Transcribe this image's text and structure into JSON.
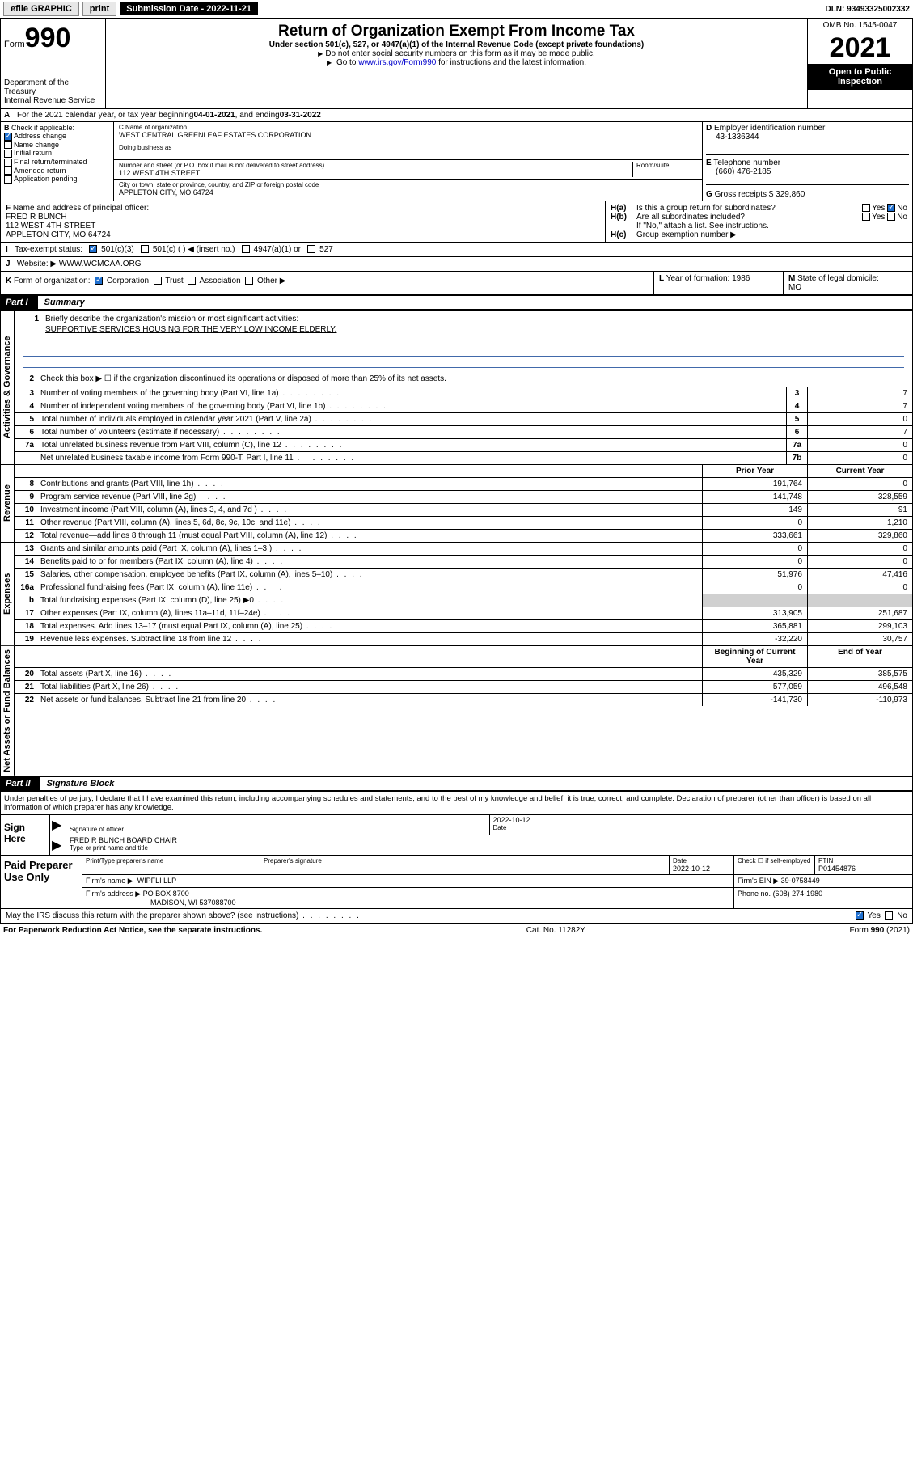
{
  "topbar": {
    "efile": "efile GRAPHIC",
    "print": "print",
    "submission_label": "Submission Date - 2022-11-21",
    "dln_label": "DLN: 93493325002332"
  },
  "header": {
    "form_word": "Form",
    "form_num": "990",
    "title": "Return of Organization Exempt From Income Tax",
    "subtitle": "Under section 501(c), 527, or 4947(a)(1) of the Internal Revenue Code (except private foundations)",
    "note1": "Do not enter social security numbers on this form as it may be made public.",
    "note2_pre": "Go to ",
    "note2_link": "www.irs.gov/Form990",
    "note2_post": " for instructions and the latest information.",
    "dept": "Department of the Treasury",
    "irs": "Internal Revenue Service",
    "omb": "OMB No. 1545-0047",
    "year": "2021",
    "open": "Open to Public Inspection"
  },
  "A": {
    "text": "For the 2021 calendar year, or tax year beginning ",
    "begin": "04-01-2021",
    "mid": " , and ending ",
    "end": "03-31-2022"
  },
  "B": {
    "label": "Check if applicable:",
    "items": [
      "Address change",
      "Name change",
      "Initial return",
      "Final return/terminated",
      "Amended return",
      "Application pending"
    ],
    "checked_idx": 0
  },
  "C": {
    "name_label": "Name of organization",
    "name": "WEST CENTRAL GREENLEAF ESTATES CORPORATION",
    "dba_label": "Doing business as",
    "street_label": "Number and street (or P.O. box if mail is not delivered to street address)",
    "room_label": "Room/suite",
    "street": "112 WEST 4TH STREET",
    "city_label": "City or town, state or province, country, and ZIP or foreign postal code",
    "city": "APPLETON CITY, MO  64724"
  },
  "D": {
    "label": "Employer identification number",
    "value": "43-1336344"
  },
  "E": {
    "label": "Telephone number",
    "value": "(660) 476-2185"
  },
  "G": {
    "label": "Gross receipts $",
    "value": "329,860"
  },
  "F": {
    "label": "Name and address of principal officer:",
    "name": "FRED R BUNCH",
    "street": "112 WEST 4TH STREET",
    "city": "APPLETON CITY, MO  64724"
  },
  "H": {
    "a": "Is this a group return for subordinates?",
    "b": "Are all subordinates included?",
    "b_note": "If \"No,\" attach a list. See instructions.",
    "c": "Group exemption number ▶",
    "yes": "Yes",
    "no": "No"
  },
  "I": {
    "label": "Tax-exempt status:",
    "opts": [
      "501(c)(3)",
      "501(c) (  ) ◀ (insert no.)",
      "4947(a)(1) or",
      "527"
    ]
  },
  "J": {
    "label": "Website: ▶",
    "value": "WWW.WCMCAA.ORG"
  },
  "K": {
    "label": "Form of organization:",
    "opts": [
      "Corporation",
      "Trust",
      "Association",
      "Other ▶"
    ]
  },
  "L": {
    "label": "Year of formation:",
    "value": "1986"
  },
  "M": {
    "label": "State of legal domicile:",
    "value": "MO"
  },
  "part1": {
    "label": "Part I",
    "title": "Summary",
    "q1": "Briefly describe the organization's mission or most significant activities:",
    "mission": "SUPPORTIVE SERVICES HOUSING FOR THE VERY LOW INCOME ELDERLY.",
    "q2": "Check this box ▶ ☐  if the organization discontinued its operations or disposed of more than 25% of its net assets.",
    "tabs": {
      "gov": "Activities & Governance",
      "rev": "Revenue",
      "exp": "Expenses",
      "net": "Net Assets or Fund Balances"
    },
    "rows_gov": [
      {
        "n": "3",
        "d": "Number of voting members of the governing body (Part VI, line 1a)",
        "box": "3",
        "v": "7"
      },
      {
        "n": "4",
        "d": "Number of independent voting members of the governing body (Part VI, line 1b)",
        "box": "4",
        "v": "7"
      },
      {
        "n": "5",
        "d": "Total number of individuals employed in calendar year 2021 (Part V, line 2a)",
        "box": "5",
        "v": "0"
      },
      {
        "n": "6",
        "d": "Total number of volunteers (estimate if necessary)",
        "box": "6",
        "v": "7"
      },
      {
        "n": "7a",
        "d": "Total unrelated business revenue from Part VIII, column (C), line 12",
        "box": "7a",
        "v": "0"
      },
      {
        "n": "",
        "d": "Net unrelated business taxable income from Form 990-T, Part I, line 11",
        "box": "7b",
        "v": "0"
      }
    ],
    "col_prior": "Prior Year",
    "col_current": "Current Year",
    "rows_rev": [
      {
        "n": "8",
        "d": "Contributions and grants (Part VIII, line 1h)",
        "p": "191,764",
        "c": "0"
      },
      {
        "n": "9",
        "d": "Program service revenue (Part VIII, line 2g)",
        "p": "141,748",
        "c": "328,559"
      },
      {
        "n": "10",
        "d": "Investment income (Part VIII, column (A), lines 3, 4, and 7d )",
        "p": "149",
        "c": "91"
      },
      {
        "n": "11",
        "d": "Other revenue (Part VIII, column (A), lines 5, 6d, 8c, 9c, 10c, and 11e)",
        "p": "0",
        "c": "1,210"
      },
      {
        "n": "12",
        "d": "Total revenue—add lines 8 through 11 (must equal Part VIII, column (A), line 12)",
        "p": "333,661",
        "c": "329,860"
      }
    ],
    "rows_exp": [
      {
        "n": "13",
        "d": "Grants and similar amounts paid (Part IX, column (A), lines 1–3 )",
        "p": "0",
        "c": "0"
      },
      {
        "n": "14",
        "d": "Benefits paid to or for members (Part IX, column (A), line 4)",
        "p": "0",
        "c": "0"
      },
      {
        "n": "15",
        "d": "Salaries, other compensation, employee benefits (Part IX, column (A), lines 5–10)",
        "p": "51,976",
        "c": "47,416"
      },
      {
        "n": "16a",
        "d": "Professional fundraising fees (Part IX, column (A), line 11e)",
        "p": "0",
        "c": "0"
      },
      {
        "n": "b",
        "d": "Total fundraising expenses (Part IX, column (D), line 25) ▶0",
        "p": "",
        "c": "",
        "gray": true
      },
      {
        "n": "17",
        "d": "Other expenses (Part IX, column (A), lines 11a–11d, 11f–24e)",
        "p": "313,905",
        "c": "251,687"
      },
      {
        "n": "18",
        "d": "Total expenses. Add lines 13–17 (must equal Part IX, column (A), line 25)",
        "p": "365,881",
        "c": "299,103"
      },
      {
        "n": "19",
        "d": "Revenue less expenses. Subtract line 18 from line 12",
        "p": "-32,220",
        "c": "30,757"
      }
    ],
    "col_begin": "Beginning of Current Year",
    "col_end": "End of Year",
    "rows_net": [
      {
        "n": "20",
        "d": "Total assets (Part X, line 16)",
        "p": "435,329",
        "c": "385,575"
      },
      {
        "n": "21",
        "d": "Total liabilities (Part X, line 26)",
        "p": "577,059",
        "c": "496,548"
      },
      {
        "n": "22",
        "d": "Net assets or fund balances. Subtract line 21 from line 20",
        "p": "-141,730",
        "c": "-110,973"
      }
    ]
  },
  "part2": {
    "label": "Part II",
    "title": "Signature Block",
    "declaration": "Under penalties of perjury, I declare that I have examined this return, including accompanying schedules and statements, and to the best of my knowledge and belief, it is true, correct, and complete. Declaration of preparer (other than officer) is based on all information of which preparer has any knowledge.",
    "sign_here": "Sign Here",
    "sig_officer": "Signature of officer",
    "sig_date": "2022-10-12",
    "date_label": "Date",
    "officer_name": "FRED R BUNCH  BOARD CHAIR",
    "officer_label": "Type or print name and title",
    "paid": "Paid Preparer Use Only",
    "prep_name_label": "Print/Type preparer's name",
    "prep_sig_label": "Preparer's signature",
    "prep_date_label": "Date",
    "prep_date": "2022-10-12",
    "check_self": "Check ☐ if self-employed",
    "ptin_label": "PTIN",
    "ptin": "P01454876",
    "firm_name_label": "Firm's name    ▶",
    "firm_name": "WIPFLI LLP",
    "firm_ein_label": "Firm's EIN ▶",
    "firm_ein": "39-0758449",
    "firm_addr_label": "Firm's address ▶",
    "firm_addr1": "PO BOX 8700",
    "firm_addr2": "MADISON, WI  537088700",
    "phone_label": "Phone no.",
    "phone": "(608) 274-1980",
    "may_irs": "May the IRS discuss this return with the preparer shown above? (see instructions)",
    "paperwork": "For Paperwork Reduction Act Notice, see the separate instructions.",
    "cat": "Cat. No. 11282Y",
    "form_foot": "Form 990 (2021)"
  },
  "colors": {
    "link": "#0000cc",
    "check_blue": "#2070d0",
    "rule_blue": "#4169aa"
  }
}
